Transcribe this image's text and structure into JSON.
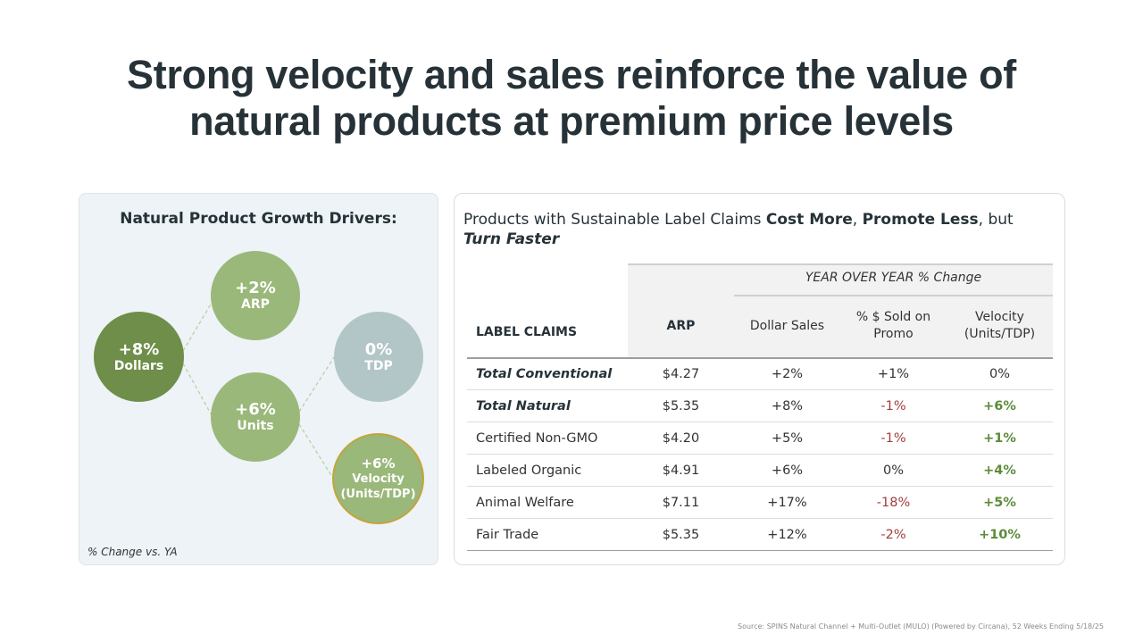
{
  "title_line1": "Strong velocity and sales reinforce the value of",
  "title_line2": "natural products at premium price levels",
  "left": {
    "title": "Natural Product Growth Drivers:",
    "note": "% Change vs. YA",
    "circles": {
      "dollars": {
        "value": "+8%",
        "label": "Dollars"
      },
      "arp": {
        "value": "+2%",
        "label": "ARP"
      },
      "units": {
        "value": "+6%",
        "label": "Units"
      },
      "tdp": {
        "value": "0%",
        "label": "TDP"
      },
      "velocity": {
        "value": "+6%",
        "label_line1": "Velocity",
        "label_line2": "(Units/TDP)"
      }
    },
    "colors": {
      "dollars": "#6e8e49",
      "arp_units_velocity": "#9ab87a",
      "tdp": "#b2c6c7",
      "velocity_border": "#c4a43c"
    }
  },
  "right": {
    "title_part1": "Products with Sustainable Label Claims ",
    "title_bold1": "Cost More",
    "title_sep": ", ",
    "title_bold2": "Promote Less",
    "title_part2": ", but ",
    "title_bolditalic": "Turn Faster",
    "header": {
      "yoy": "YEAR OVER YEAR % Change",
      "label_claims": "LABEL CLAIMS",
      "arp": "ARP",
      "dollar_sales": "Dollar Sales",
      "promo_line1": "% $ Sold on",
      "promo_line2": "Promo",
      "velocity_line1": "Velocity",
      "velocity_line2": "(Units/TDP)"
    },
    "rows": [
      {
        "name": "Total Conventional",
        "arp": "$4.27",
        "dollar_sales": "+2%",
        "promo": "+1%",
        "velocity": "0%"
      },
      {
        "name": "Total Natural",
        "arp": "$5.35",
        "dollar_sales": "+8%",
        "promo": "-1%",
        "velocity": "+6%"
      },
      {
        "name": "Certified Non-GMO",
        "arp": "$4.20",
        "dollar_sales": "+5%",
        "promo": "-1%",
        "velocity": "+1%"
      },
      {
        "name": "Labeled Organic",
        "arp": "$4.91",
        "dollar_sales": "+6%",
        "promo": "0%",
        "velocity": "+4%"
      },
      {
        "name": "Animal Welfare",
        "arp": "$7.11",
        "dollar_sales": "+17%",
        "promo": "-18%",
        "velocity": "+5%"
      },
      {
        "name": "Fair Trade",
        "arp": "$5.35",
        "dollar_sales": "+12%",
        "promo": "-2%",
        "velocity": "+10%"
      }
    ],
    "colors": {
      "negative": "#a33d3d",
      "positive": "#5e8a3a"
    }
  },
  "source": "Source: SPINS Natural Channel + Multi-Outlet (MULO) (Powered by Circana), 52 Weeks Ending 5/18/25"
}
